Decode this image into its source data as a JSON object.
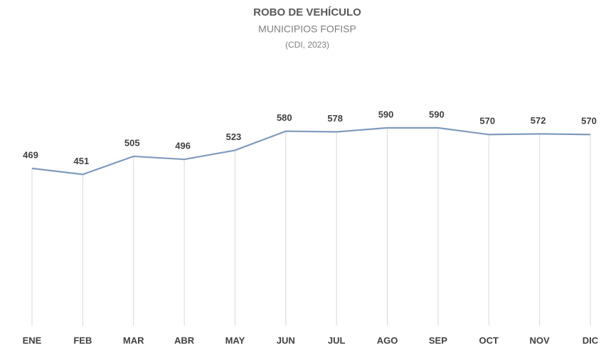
{
  "chart_data": {
    "type": "line",
    "title": "ROBO DE VEHÍCULO",
    "subtitle": "MUNICIPIOS  FOFISP",
    "note": "(CDI, 2023)",
    "categories": [
      "ENE",
      "FEB",
      "MAR",
      "ABR",
      "MAY",
      "JUN",
      "JUL",
      "AGO",
      "SEP",
      "OCT",
      "NOV",
      "DIC"
    ],
    "values": [
      469,
      451,
      505,
      496,
      523,
      580,
      578,
      590,
      590,
      570,
      572,
      570
    ],
    "color": "#7f9bbd",
    "ylim": [
      0,
      700
    ]
  }
}
